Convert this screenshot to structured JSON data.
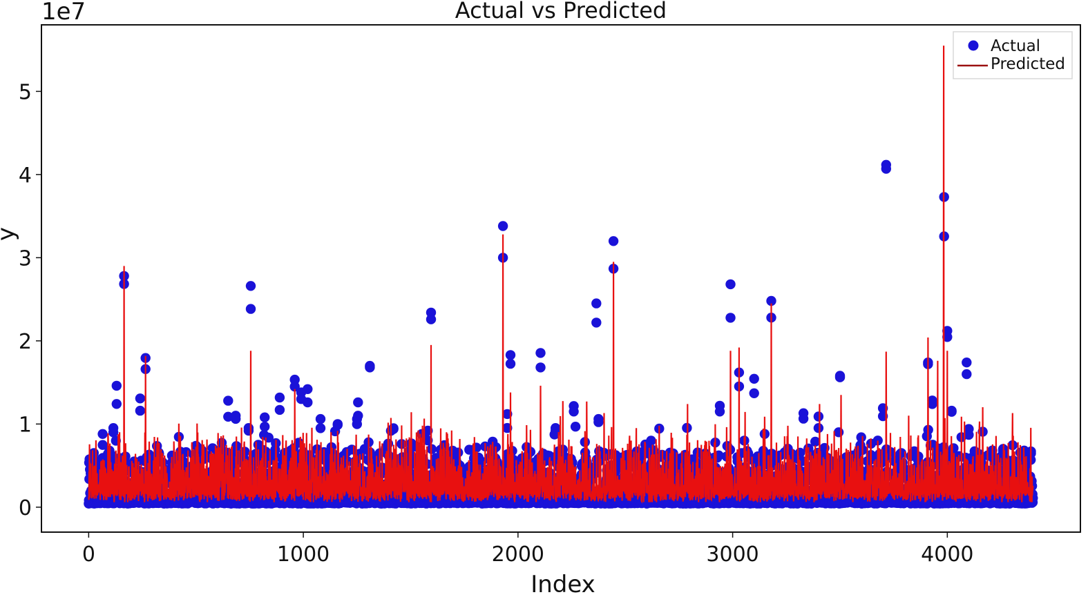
{
  "chart_data": {
    "type": "scatter+line",
    "title": "Actual vs Predicted",
    "xlabel": "Index",
    "ylabel": "y",
    "y_scale_label": "1e7",
    "y_scale": 10000000,
    "xlim": [
      -220,
      4620
    ],
    "ylim": [
      -0.3,
      5.8
    ],
    "xticks": [
      0,
      1000,
      2000,
      3000,
      4000
    ],
    "xtick_labels": [
      "0",
      "1000",
      "2000",
      "3000",
      "4000"
    ],
    "yticks": [
      0,
      1,
      2,
      3,
      4,
      5
    ],
    "ytick_labels": [
      "0",
      "1",
      "2",
      "3",
      "4",
      "5"
    ],
    "grid": false,
    "legend_position": "top-right",
    "n_points": 4400,
    "series": [
      {
        "name": "Actual",
        "kind": "scatter",
        "color": "#1a12d8",
        "notable_points": [
          [
            130,
            1.46
          ],
          [
            165,
            2.78
          ],
          [
            265,
            1.66
          ],
          [
            240,
            1.16
          ],
          [
            115,
            0.9
          ],
          [
            65,
            0.88
          ],
          [
            755,
            2.66
          ],
          [
            745,
            0.92
          ],
          [
            650,
            1.28
          ],
          [
            685,
            1.1
          ],
          [
            820,
            1.08
          ],
          [
            890,
            1.17
          ],
          [
            960,
            1.45
          ],
          [
            990,
            1.38
          ],
          [
            1020,
            1.26
          ],
          [
            1080,
            1.06
          ],
          [
            1160,
            1.0
          ],
          [
            1250,
            1.06
          ],
          [
            1255,
            1.26
          ],
          [
            1310,
            1.68
          ],
          [
            1420,
            0.95
          ],
          [
            1580,
            0.92
          ],
          [
            1595,
            2.34
          ],
          [
            1930,
            3.0
          ],
          [
            1950,
            1.12
          ],
          [
            1965,
            1.83
          ],
          [
            2105,
            1.68
          ],
          [
            2175,
            0.92
          ],
          [
            2260,
            1.15
          ],
          [
            2365,
            2.22
          ],
          [
            2375,
            1.06
          ],
          [
            2445,
            3.2
          ],
          [
            2620,
            0.8
          ],
          [
            2940,
            1.22
          ],
          [
            2990,
            2.68
          ],
          [
            3030,
            1.62
          ],
          [
            3100,
            1.37
          ],
          [
            3180,
            2.48
          ],
          [
            3330,
            1.13
          ],
          [
            3400,
            1.09
          ],
          [
            3500,
            1.58
          ],
          [
            3700,
            1.19
          ],
          [
            3715,
            4.07
          ],
          [
            3910,
            1.72
          ],
          [
            3930,
            1.24
          ],
          [
            3985,
            3.73
          ],
          [
            4000,
            2.12
          ],
          [
            4020,
            1.16
          ],
          [
            4090,
            1.74
          ],
          [
            4100,
            0.87
          ],
          [
            4260,
            0.7
          ],
          [
            4360,
            0.6
          ],
          [
            4390,
            0.67
          ]
        ]
      },
      {
        "name": "Predicted",
        "kind": "line",
        "color": "#e81010",
        "notable_spikes": [
          [
            165,
            2.9
          ],
          [
            265,
            1.82
          ],
          [
            755,
            1.88
          ],
          [
            960,
            1.42
          ],
          [
            1595,
            1.95
          ],
          [
            1930,
            3.28
          ],
          [
            1965,
            1.38
          ],
          [
            2105,
            1.46
          ],
          [
            2320,
            1.27
          ],
          [
            2445,
            2.95
          ],
          [
            2790,
            1.24
          ],
          [
            2990,
            1.88
          ],
          [
            3030,
            1.92
          ],
          [
            3180,
            2.45
          ],
          [
            3405,
            1.24
          ],
          [
            3505,
            1.35
          ],
          [
            3715,
            1.87
          ],
          [
            3820,
            1.1
          ],
          [
            3910,
            2.04
          ],
          [
            3955,
            1.76
          ],
          [
            3983,
            5.55
          ],
          [
            4000,
            1.88
          ],
          [
            4080,
            1.03
          ],
          [
            4150,
            1.03
          ]
        ]
      }
    ]
  }
}
